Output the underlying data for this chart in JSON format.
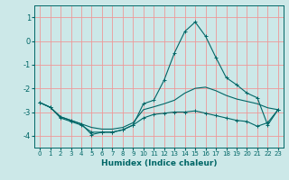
{
  "xlabel": "Humidex (Indice chaleur)",
  "background_color": "#cce8e8",
  "grid_color": "#ee9999",
  "line_color": "#006666",
  "xlim": [
    -0.5,
    23.5
  ],
  "ylim": [
    -4.5,
    1.5
  ],
  "yticks": [
    1,
    0,
    -1,
    -2,
    -3,
    -4
  ],
  "xticks": [
    0,
    1,
    2,
    3,
    4,
    5,
    6,
    7,
    8,
    9,
    10,
    11,
    12,
    13,
    14,
    15,
    16,
    17,
    18,
    19,
    20,
    21,
    22,
    23
  ],
  "line1_x": [
    0,
    1,
    2,
    3,
    4,
    5,
    6,
    7,
    8,
    9,
    10,
    11,
    12,
    13,
    14,
    15,
    16,
    17,
    18,
    19,
    20,
    21,
    22,
    23
  ],
  "line1_y": [
    -2.6,
    -2.8,
    -3.2,
    -3.35,
    -3.5,
    -3.65,
    -3.72,
    -3.72,
    -3.65,
    -3.45,
    -2.9,
    -2.78,
    -2.65,
    -2.5,
    -2.2,
    -2.0,
    -1.95,
    -2.1,
    -2.3,
    -2.45,
    -2.55,
    -2.65,
    -2.82,
    -2.9
  ],
  "line2_x": [
    0,
    1,
    2,
    3,
    4,
    5,
    6,
    7,
    8,
    9,
    10,
    11,
    12,
    13,
    14,
    15,
    16,
    17,
    18,
    19,
    20,
    21,
    22,
    23
  ],
  "line2_y": [
    -2.6,
    -2.8,
    -3.2,
    -3.35,
    -3.5,
    -3.95,
    -3.85,
    -3.85,
    -3.75,
    -3.55,
    -2.65,
    -2.5,
    -1.65,
    -0.5,
    0.4,
    0.8,
    0.2,
    -0.7,
    -1.55,
    -1.85,
    -2.2,
    -2.4,
    -3.55,
    -2.9
  ],
  "line3_x": [
    0,
    1,
    2,
    3,
    4,
    5,
    6,
    7,
    8,
    9,
    10,
    11,
    12,
    13,
    14,
    15,
    16,
    17,
    18,
    19,
    20,
    21,
    22,
    23
  ],
  "line3_y": [
    -2.6,
    -2.8,
    -3.25,
    -3.4,
    -3.55,
    -3.85,
    -3.85,
    -3.85,
    -3.75,
    -3.55,
    -3.25,
    -3.1,
    -3.05,
    -3.0,
    -3.0,
    -2.95,
    -3.05,
    -3.15,
    -3.25,
    -3.35,
    -3.4,
    -3.6,
    -3.45,
    -2.9
  ]
}
